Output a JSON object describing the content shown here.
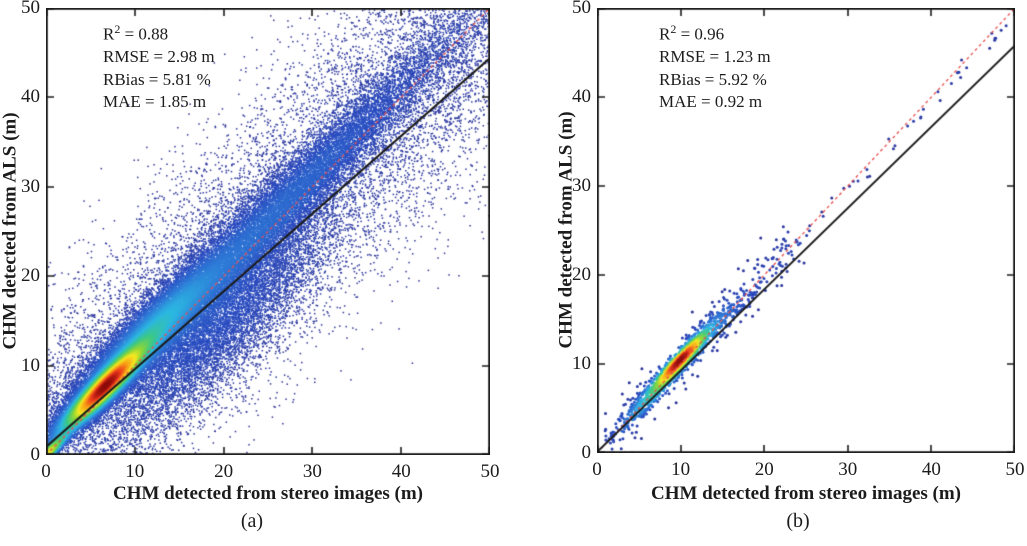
{
  "figure": {
    "background": "#ffffff",
    "frame_color": "#1b1b1b"
  },
  "chart_data": [
    {
      "id": "a",
      "type": "scatter",
      "subtype": "density-scatter",
      "caption": "(a)",
      "xlabel": "CHM detected from stereo images (m)",
      "ylabel": "CHM detected from ALS (m)",
      "xlim": [
        0,
        50
      ],
      "ylim": [
        0,
        50
      ],
      "x_ticks": [
        0,
        10,
        20,
        30,
        40,
        50
      ],
      "y_ticks": [
        0,
        10,
        20,
        30,
        40,
        50
      ],
      "grid": false,
      "stats": {
        "r2_base": "R",
        "r2_sup": "2",
        "r2_eq": " = 0.88",
        "rmse": "RMSE = 2.98 m",
        "rbias": "RBias = 5.81 %",
        "mae": "MAE = 1.85 m"
      },
      "regression_line": {
        "x1": 0,
        "y1": 0.9,
        "x2": 50,
        "y2": 44.4,
        "color": "#1b1b1b",
        "width": 2,
        "style": "solid"
      },
      "identity_line": {
        "x1": 0,
        "y1": 0,
        "x2": 50,
        "y2": 50,
        "color": "#e8504e",
        "width": 1.3,
        "dash": [
          3,
          3
        ],
        "style": "dashed"
      },
      "density_cloud": {
        "seed": 20240501,
        "n": 70000,
        "point_size": 1.5,
        "shape": "square",
        "color_exponent": 0.55,
        "components": [
          {
            "w": 0.02,
            "t": {
              "type": "halfnorm",
              "mu": 0,
              "sigma": 1.3
            },
            "d": {
              "mu": 0,
              "sigma": 0.5
            }
          },
          {
            "w": 0.28,
            "t": {
              "type": "norm",
              "mu": 7,
              "sigma": 2.7
            },
            "d": {
              "mu": 1.0,
              "sigma": 1.05
            }
          },
          {
            "w": 0.18,
            "t": {
              "type": "norm",
              "mu": 12.5,
              "sigma": 4.5
            },
            "d": {
              "mu": 2.0,
              "sigma": 1.9
            }
          },
          {
            "w": 0.22,
            "t": {
              "type": "norm",
              "mu": 26,
              "sigma": 10
            },
            "d": {
              "mu": 1.3,
              "sigma": 2.3
            }
          },
          {
            "w": 0.12,
            "t": {
              "type": "norm",
              "mu": 17,
              "sigma": 6
            },
            "d": {
              "mu": -4.5,
              "sigma": 3.8
            }
          },
          {
            "w": 0.18,
            "t": {
              "type": "uniform",
              "a": 0,
              "b": 52
            },
            "d": {
              "mu": 0,
              "sigma": 8
            }
          }
        ]
      },
      "colormap": [
        [
          0.0,
          "#2e3192"
        ],
        [
          0.2,
          "#2a4cc0"
        ],
        [
          0.33,
          "#2f7dd8"
        ],
        [
          0.45,
          "#2fb8e2"
        ],
        [
          0.55,
          "#3ec98b"
        ],
        [
          0.66,
          "#8ed63c"
        ],
        [
          0.75,
          "#f6e926"
        ],
        [
          0.85,
          "#f8a01c"
        ],
        [
          0.93,
          "#ec3d24"
        ],
        [
          1.0,
          "#8e0e0e"
        ]
      ]
    },
    {
      "id": "b",
      "type": "scatter",
      "subtype": "density-scatter",
      "caption": "(b)",
      "xlabel": "CHM detected from stereo images (m)",
      "ylabel": "CHM detected from ALS (m)",
      "xlim": [
        0,
        50
      ],
      "ylim": [
        0,
        50
      ],
      "x_ticks": [
        0,
        10,
        20,
        30,
        40,
        50
      ],
      "y_ticks": [
        0,
        10,
        20,
        30,
        40,
        50
      ],
      "grid": false,
      "stats": {
        "r2_base": "R",
        "r2_sup": "2",
        "r2_eq": " = 0.96",
        "rmse": "RMSE = 1.23 m",
        "rbias": "RBias = 5.92 %",
        "mae": "MAE = 0.92 m"
      },
      "regression_line": {
        "x1": 0,
        "y1": 0.1,
        "x2": 50,
        "y2": 45.8,
        "color": "#1b1b1b",
        "width": 2,
        "style": "solid"
      },
      "identity_line": {
        "x1": 0,
        "y1": 0,
        "x2": 50,
        "y2": 50,
        "color": "#e8504e",
        "width": 1.3,
        "dash": [
          3,
          3
        ],
        "style": "dashed"
      },
      "density_cloud": {
        "seed": 90210,
        "n": 1700,
        "point_size": 3,
        "shape": "circle",
        "color_exponent": 0.5,
        "components": [
          {
            "w": 0.42,
            "t": {
              "type": "norm",
              "mu": 10.2,
              "sigma": 1.7
            },
            "d": {
              "mu": 0.5,
              "sigma": 0.55
            }
          },
          {
            "w": 0.25,
            "t": {
              "type": "norm",
              "mu": 11.5,
              "sigma": 3.2
            },
            "d": {
              "mu": 0.3,
              "sigma": 1.0
            }
          },
          {
            "w": 0.15,
            "t": {
              "type": "norm",
              "mu": 6.5,
              "sigma": 2.2
            },
            "d": {
              "mu": 0,
              "sigma": 0.7
            }
          },
          {
            "w": 0.13,
            "t": {
              "type": "uniform",
              "a": 1,
              "b": 24
            },
            "d": {
              "mu": 0,
              "sigma": 1.6
            }
          },
          {
            "w": 0.05,
            "t": {
              "type": "uniform",
              "a": 2,
              "b": 49
            },
            "d": {
              "mu": -0.6,
              "sigma": 0.5
            }
          }
        ]
      },
      "colormap": [
        [
          0.0,
          "#2e3192"
        ],
        [
          0.2,
          "#2a4cc0"
        ],
        [
          0.33,
          "#2f7dd8"
        ],
        [
          0.45,
          "#2fb8e2"
        ],
        [
          0.55,
          "#3ec98b"
        ],
        [
          0.66,
          "#8ed63c"
        ],
        [
          0.75,
          "#f6e926"
        ],
        [
          0.85,
          "#f8a01c"
        ],
        [
          0.93,
          "#ec3d24"
        ],
        [
          1.0,
          "#8e0e0e"
        ]
      ]
    }
  ]
}
